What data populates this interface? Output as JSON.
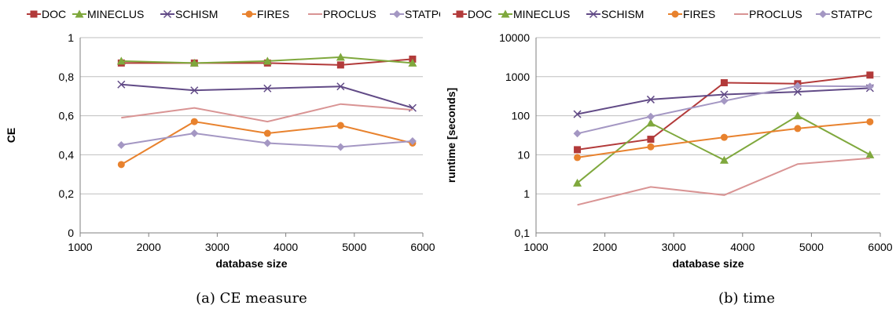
{
  "chart_data": [
    {
      "type": "line",
      "caption": "(a) CE measure",
      "xlabel": "database size",
      "ylabel": "CE",
      "xlim": [
        1000,
        6000
      ],
      "ylim": [
        0,
        1
      ],
      "yscale": "linear",
      "x_ticks": [
        "1000",
        "2000",
        "3000",
        "4000",
        "5000",
        "6000"
      ],
      "y_ticks": [
        "0",
        "0,2",
        "0,4",
        "0,6",
        "0,8",
        "1"
      ],
      "legend": "top",
      "grid": true,
      "x": [
        1600,
        2666,
        3733,
        4800,
        5850
      ],
      "series": [
        {
          "name": "DOC",
          "color": "#b23a3a",
          "marker": "square",
          "values": [
            0.87,
            0.87,
            0.87,
            0.86,
            0.89
          ]
        },
        {
          "name": "MINECLUS",
          "color": "#7fa83d",
          "marker": "triangle",
          "values": [
            0.88,
            0.87,
            0.88,
            0.9,
            0.87
          ]
        },
        {
          "name": "SCHISM",
          "color": "#614a86",
          "marker": "x",
          "values": [
            0.76,
            0.73,
            0.74,
            0.75,
            0.64
          ]
        },
        {
          "name": "FIRES",
          "color": "#e8822e",
          "marker": "circle",
          "values": [
            0.35,
            0.57,
            0.51,
            0.55,
            0.46
          ]
        },
        {
          "name": "PROCLUS",
          "color": "#d99494",
          "marker": "dash",
          "values": [
            0.59,
            0.64,
            0.57,
            0.66,
            0.63
          ]
        },
        {
          "name": "STATPC",
          "color": "#a497c3",
          "marker": "diamond",
          "values": [
            0.45,
            0.51,
            0.46,
            0.44,
            0.47
          ]
        }
      ]
    },
    {
      "type": "line",
      "caption": "(b) time",
      "xlabel": "database size",
      "ylabel": "runtime [seconds]",
      "xlim": [
        1000,
        6000
      ],
      "ylim": [
        0.1,
        10000
      ],
      "yscale": "log",
      "x_ticks": [
        "1000",
        "2000",
        "3000",
        "4000",
        "5000",
        "6000"
      ],
      "y_ticks": [
        "0,1",
        "1",
        "10",
        "100",
        "1000",
        "10000"
      ],
      "legend": "top",
      "grid": true,
      "x": [
        1600,
        2666,
        3733,
        4800,
        5850
      ],
      "series": [
        {
          "name": "DOC",
          "color": "#b23a3a",
          "marker": "square",
          "values": [
            13.5,
            25,
            700,
            660,
            1100
          ]
        },
        {
          "name": "MINECLUS",
          "color": "#7fa83d",
          "marker": "triangle",
          "values": [
            1.9,
            65,
            7.3,
            100,
            10
          ]
        },
        {
          "name": "SCHISM",
          "color": "#614a86",
          "marker": "x",
          "values": [
            110,
            260,
            350,
            410,
            510
          ]
        },
        {
          "name": "FIRES",
          "color": "#e8822e",
          "marker": "circle",
          "values": [
            8.5,
            16,
            28,
            47,
            70
          ]
        },
        {
          "name": "PROCLUS",
          "color": "#d99494",
          "marker": "dash",
          "values": [
            0.52,
            1.5,
            0.93,
            5.8,
            8.2
          ]
        },
        {
          "name": "STATPC",
          "color": "#a497c3",
          "marker": "diamond",
          "values": [
            35,
            95,
            240,
            580,
            560
          ]
        }
      ]
    }
  ]
}
